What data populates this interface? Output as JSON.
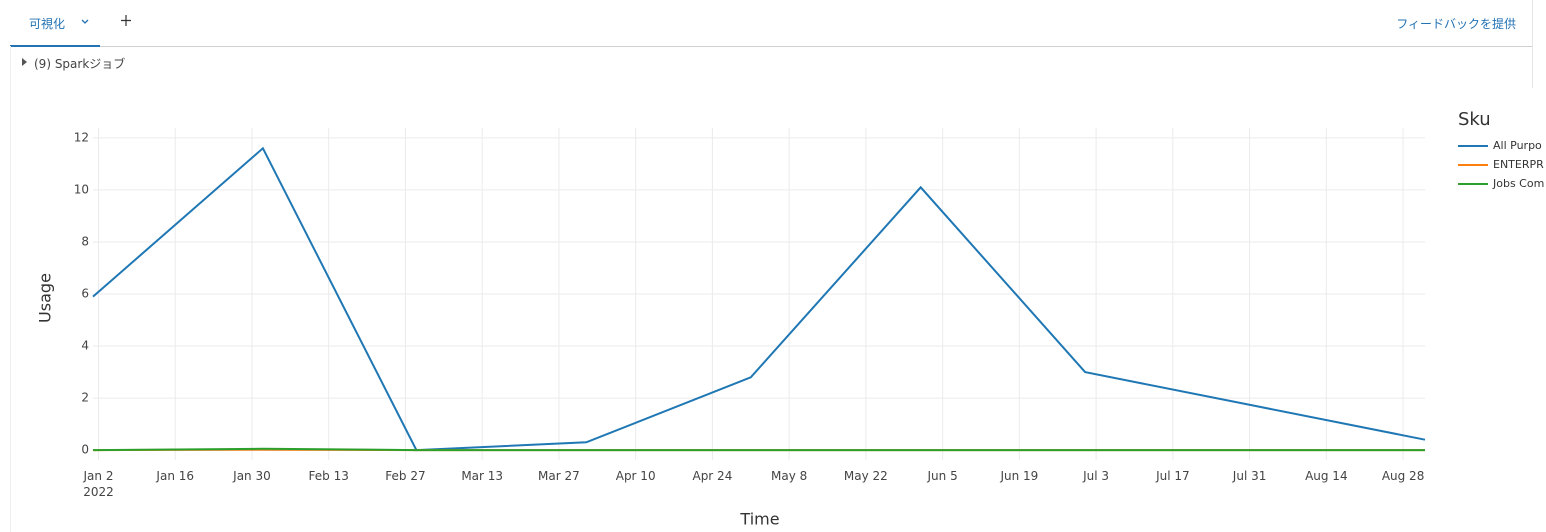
{
  "tabs": {
    "active": "可視化",
    "feedback": "フィードバックを提供"
  },
  "spark_jobs": "(9) Sparkジョブ",
  "chart_data": {
    "type": "line",
    "x_label": "Time",
    "y_label": "Usage",
    "legend_title": "Sku",
    "x": [
      "2022-01-01",
      "2022-02-01",
      "2022-03-01",
      "2022-04-01",
      "2022-05-01",
      "2022-06-01",
      "2022-07-01",
      "2022-08-01",
      "2022-09-01"
    ],
    "series": [
      {
        "name": "All Purpo",
        "color": "#1f77b4",
        "values": [
          5.9,
          11.6,
          0,
          0.3,
          2.8,
          10.1,
          3.0,
          1.7,
          0.4
        ]
      },
      {
        "name": "ENTERPR",
        "color": "#ff7f0e",
        "values": [
          0,
          0.02,
          0,
          0,
          0,
          0,
          0,
          0,
          0
        ]
      },
      {
        "name": "Jobs Com",
        "color": "#2ca02c",
        "values": [
          0,
          0.05,
          0,
          0,
          0,
          0,
          0,
          0,
          0
        ]
      }
    ],
    "xlim": [
      "2022-01-01",
      "2022-09-01"
    ],
    "xticks": [
      {
        "value": "2022-01-02",
        "label": "Jan 2\n2022"
      },
      {
        "value": "2022-01-16",
        "label": "Jan 16"
      },
      {
        "value": "2022-01-30",
        "label": "Jan 30"
      },
      {
        "value": "2022-02-13",
        "label": "Feb 13"
      },
      {
        "value": "2022-02-27",
        "label": "Feb 27"
      },
      {
        "value": "2022-03-13",
        "label": "Mar 13"
      },
      {
        "value": "2022-03-27",
        "label": "Mar 27"
      },
      {
        "value": "2022-04-10",
        "label": "Apr 10"
      },
      {
        "value": "2022-04-24",
        "label": "Apr 24"
      },
      {
        "value": "2022-05-08",
        "label": "May 8"
      },
      {
        "value": "2022-05-22",
        "label": "May 22"
      },
      {
        "value": "2022-06-05",
        "label": "Jun 5"
      },
      {
        "value": "2022-06-19",
        "label": "Jun 19"
      },
      {
        "value": "2022-07-03",
        "label": "Jul 3"
      },
      {
        "value": "2022-07-17",
        "label": "Jul 17"
      },
      {
        "value": "2022-07-31",
        "label": "Jul 31"
      },
      {
        "value": "2022-08-14",
        "label": "Aug 14"
      },
      {
        "value": "2022-08-28",
        "label": "Aug 28"
      }
    ],
    "ylim": [
      -0.38,
      12.38
    ],
    "yticks": [
      0,
      2,
      4,
      6,
      8,
      10,
      12
    ],
    "grid": true
  }
}
